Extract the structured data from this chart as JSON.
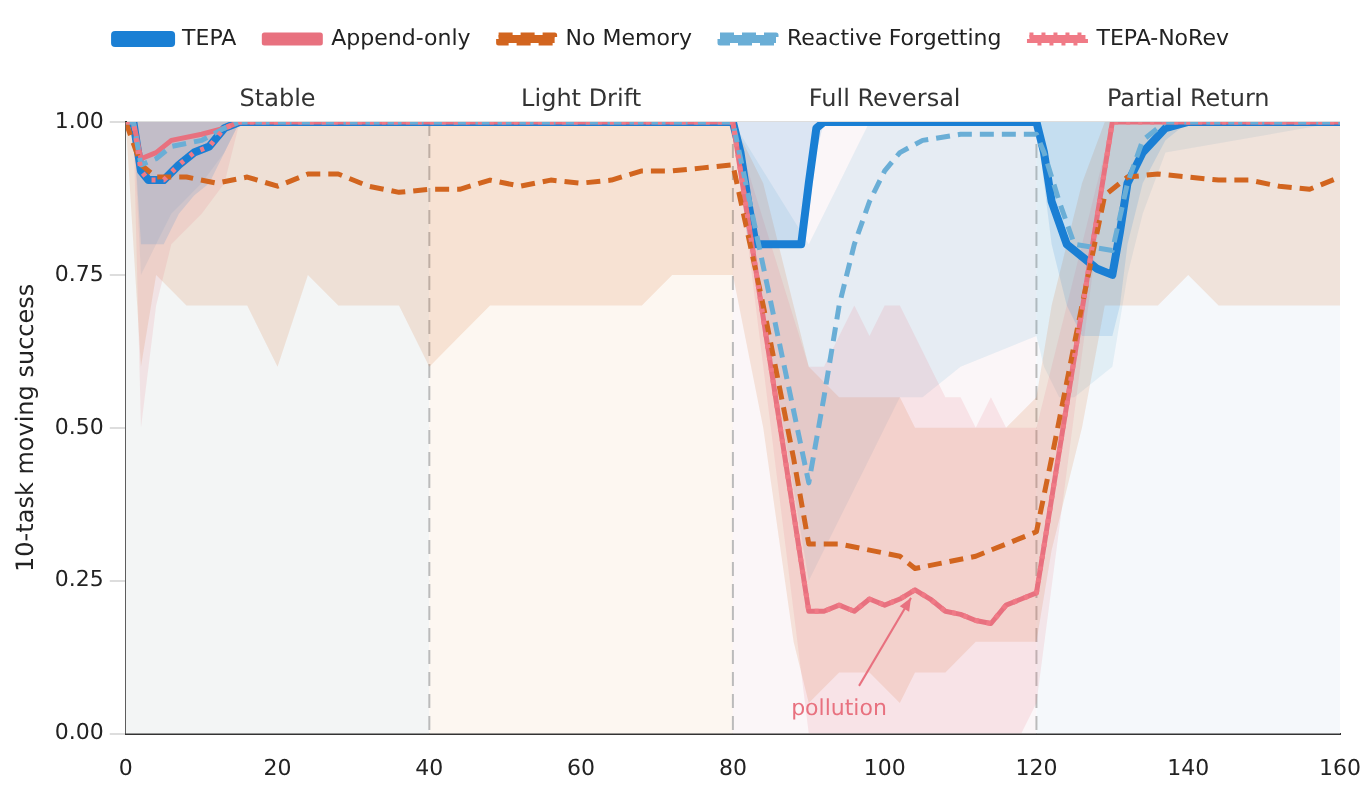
{
  "chart_data": {
    "type": "line",
    "ylabel": "10-task moving success",
    "xlim": [
      0,
      160
    ],
    "xticks": [
      0,
      20,
      40,
      60,
      80,
      100,
      120,
      140,
      160
    ],
    "ylim": [
      0,
      1
    ],
    "yticks": [
      {
        "value": 0,
        "label": "0.00"
      },
      {
        "value": 0.25,
        "label": "0.25"
      },
      {
        "value": 0.5,
        "label": "0.50"
      },
      {
        "value": 0.75,
        "label": "0.75"
      },
      {
        "value": 1,
        "label": "1.00"
      }
    ],
    "grid": "y",
    "legend": "top",
    "marker": "none",
    "bands": [
      {
        "axis": "x",
        "from": 0,
        "to": 40,
        "label": "Stable",
        "color": "#f3f5f5"
      },
      {
        "axis": "x",
        "from": 40,
        "to": 80,
        "label": "Light Drift",
        "color": "#fdf7f1"
      },
      {
        "axis": "x",
        "from": 80,
        "to": 120,
        "label": "Full Reversal",
        "color": "#fbf6f8"
      },
      {
        "axis": "x",
        "from": 120,
        "to": 160,
        "label": "Partial Return",
        "color": "#f5f8fb"
      }
    ],
    "ref_lines": [
      {
        "axis": "x",
        "value": 40,
        "color": "#bbbbbb",
        "line_style": "dashed"
      },
      {
        "axis": "x",
        "value": 80,
        "color": "#bbbbbb",
        "line_style": "dashed"
      },
      {
        "axis": "x",
        "value": 120,
        "color": "#bbbbbb",
        "line_style": "dashed"
      }
    ],
    "annotations": [
      {
        "text": "pollution",
        "x": 104,
        "y": 0.235
      }
    ],
    "series": [
      {
        "name": "TEPA",
        "color": "#1a7fd4",
        "line_style": "solid",
        "x": [
          0,
          1,
          2,
          3,
          5,
          7,
          9,
          11,
          13,
          15,
          20,
          40,
          60,
          80,
          81,
          82,
          83,
          89,
          90,
          91,
          92,
          100,
          120,
          121,
          122,
          124,
          126,
          128,
          130,
          131,
          132,
          134,
          137,
          140,
          160
        ],
        "values": [
          1,
          1,
          0.92,
          0.905,
          0.905,
          0.93,
          0.95,
          0.96,
          0.99,
          1,
          1,
          1,
          1,
          1,
          0.95,
          0.87,
          0.8,
          0.8,
          0.9,
          0.99,
          1,
          1,
          1,
          0.95,
          0.87,
          0.8,
          0.78,
          0.76,
          0.75,
          0.82,
          0.9,
          0.95,
          0.99,
          1,
          1
        ],
        "lower": [
          1,
          1,
          0.8,
          0.8,
          0.8,
          0.85,
          0.88,
          0.9,
          0.95,
          1,
          1,
          1,
          1,
          1,
          0.9,
          0.8,
          0.8,
          0.8,
          0.85,
          0.95,
          1,
          1,
          1,
          0.9,
          0.8,
          0.7,
          0.65,
          0.65,
          0.65,
          0.7,
          0.8,
          0.9,
          0.97,
          1,
          1
        ],
        "upper": [
          1,
          1,
          1,
          1,
          1,
          1,
          1,
          1,
          1,
          1,
          1,
          1,
          1,
          1,
          1,
          1,
          1,
          1,
          1,
          1,
          1,
          1,
          1,
          1,
          1,
          1,
          1,
          1,
          1,
          1,
          1,
          1,
          1,
          1,
          1
        ]
      },
      {
        "name": "Append-only",
        "color": "#e8717f",
        "line_style": "solid",
        "x": [
          0,
          1,
          2,
          4,
          6,
          10,
          13,
          15,
          40,
          80,
          90,
          92,
          94,
          96,
          98,
          100,
          102,
          104,
          106,
          108,
          110,
          112,
          114,
          116,
          118,
          120,
          130,
          160
        ],
        "values": [
          1,
          1,
          0.94,
          0.95,
          0.97,
          0.98,
          0.99,
          1,
          1,
          1,
          0.2,
          0.2,
          0.21,
          0.2,
          0.22,
          0.21,
          0.22,
          0.235,
          0.22,
          0.2,
          0.195,
          0.185,
          0.18,
          0.21,
          0.22,
          0.23,
          1,
          1
        ],
        "lower": [
          1,
          1,
          0.5,
          0.7,
          0.8,
          0.85,
          0.9,
          1,
          1,
          1,
          0,
          0,
          0,
          0,
          0,
          0,
          0,
          0,
          0,
          0,
          0,
          0,
          0,
          0,
          0,
          0.05,
          1,
          1
        ],
        "upper": [
          1,
          1,
          1,
          1,
          1,
          1,
          1,
          1,
          1,
          1,
          0.6,
          0.6,
          0.65,
          0.7,
          0.65,
          0.7,
          0.7,
          0.65,
          0.6,
          0.55,
          0.55,
          0.5,
          0.55,
          0.5,
          0.5,
          0.5,
          1,
          1
        ]
      },
      {
        "name": "No Memory",
        "color": "#d2651f",
        "line_style": "dashed",
        "x": [
          0,
          2,
          4,
          8,
          12,
          16,
          20,
          24,
          28,
          32,
          36,
          40,
          44,
          48,
          52,
          56,
          60,
          64,
          68,
          72,
          76,
          80,
          84,
          88,
          90,
          94,
          98,
          102,
          104,
          108,
          112,
          116,
          120,
          122,
          126,
          129,
          132,
          136,
          140,
          144,
          148,
          152,
          156,
          160
        ],
        "values": [
          1,
          0.93,
          0.91,
          0.91,
          0.9,
          0.91,
          0.895,
          0.915,
          0.915,
          0.895,
          0.885,
          0.89,
          0.89,
          0.905,
          0.895,
          0.905,
          0.9,
          0.905,
          0.92,
          0.92,
          0.925,
          0.93,
          0.7,
          0.45,
          0.31,
          0.31,
          0.3,
          0.29,
          0.27,
          0.28,
          0.29,
          0.31,
          0.33,
          0.45,
          0.7,
          0.88,
          0.91,
          0.915,
          0.91,
          0.905,
          0.905,
          0.895,
          0.89,
          0.91
        ],
        "lower": [
          1,
          0.6,
          0.75,
          0.7,
          0.7,
          0.7,
          0.6,
          0.75,
          0.7,
          0.7,
          0.7,
          0.6,
          0.65,
          0.7,
          0.7,
          0.7,
          0.7,
          0.7,
          0.7,
          0.75,
          0.75,
          0.75,
          0.5,
          0.15,
          0.05,
          0.1,
          0.1,
          0.05,
          0.1,
          0.1,
          0.15,
          0.15,
          0.15,
          0.3,
          0.5,
          0.7,
          0.7,
          0.7,
          0.75,
          0.7,
          0.7,
          0.7,
          0.7,
          0.7
        ],
        "upper": [
          1,
          1,
          1,
          1,
          1,
          1,
          1,
          1,
          1,
          1,
          1,
          1,
          1,
          1,
          1,
          1,
          1,
          1,
          1,
          1,
          1,
          1,
          0.9,
          0.7,
          0.6,
          0.55,
          0.55,
          0.55,
          0.5,
          0.5,
          0.5,
          0.5,
          0.55,
          0.7,
          0.9,
          1,
          1,
          1,
          1,
          1,
          1,
          1,
          1,
          1
        ]
      },
      {
        "name": "Reactive Forgetting",
        "color": "#6aaed6",
        "line_style": "dashed",
        "x": [
          0,
          1,
          2,
          4,
          6,
          10,
          13,
          15,
          40,
          80,
          90,
          92,
          94,
          96,
          98,
          100,
          102,
          105,
          110,
          120,
          121,
          123,
          125,
          130,
          132,
          134,
          137,
          160
        ],
        "values": [
          1,
          1,
          0.93,
          0.94,
          0.96,
          0.97,
          0.99,
          1,
          1,
          1,
          0.41,
          0.55,
          0.7,
          0.8,
          0.87,
          0.92,
          0.95,
          0.97,
          0.98,
          0.98,
          0.95,
          0.87,
          0.8,
          0.79,
          0.9,
          0.97,
          1,
          1
        ],
        "lower": [
          1,
          1,
          0.75,
          0.8,
          0.85,
          0.9,
          0.95,
          1,
          1,
          1,
          0.25,
          0.3,
          0.35,
          0.4,
          0.45,
          0.5,
          0.55,
          0.55,
          0.6,
          0.65,
          0.6,
          0.55,
          0.55,
          0.6,
          0.75,
          0.85,
          0.95,
          1
        ],
        "upper": [
          1,
          1,
          1,
          1,
          1,
          1,
          1,
          1,
          1,
          1,
          0.8,
          0.85,
          0.9,
          0.95,
          1,
          1,
          1,
          1,
          1,
          1,
          1,
          1,
          1,
          1,
          1,
          1,
          1,
          1
        ]
      },
      {
        "name": "TEPA-NoRev",
        "color": "#f07a86",
        "line_style": "dotted",
        "x": [
          0,
          1,
          2,
          3,
          5,
          7,
          9,
          11,
          13,
          15,
          40,
          80,
          90,
          92,
          94,
          96,
          98,
          100,
          102,
          104,
          106,
          108,
          110,
          112,
          114,
          116,
          118,
          120,
          130,
          160
        ],
        "values": [
          1,
          1,
          0.92,
          0.905,
          0.905,
          0.93,
          0.95,
          0.96,
          0.99,
          1,
          1,
          1,
          0.2,
          0.2,
          0.21,
          0.2,
          0.22,
          0.21,
          0.22,
          0.235,
          0.22,
          0.2,
          0.195,
          0.185,
          0.18,
          0.21,
          0.22,
          0.23,
          1,
          1
        ]
      }
    ]
  }
}
